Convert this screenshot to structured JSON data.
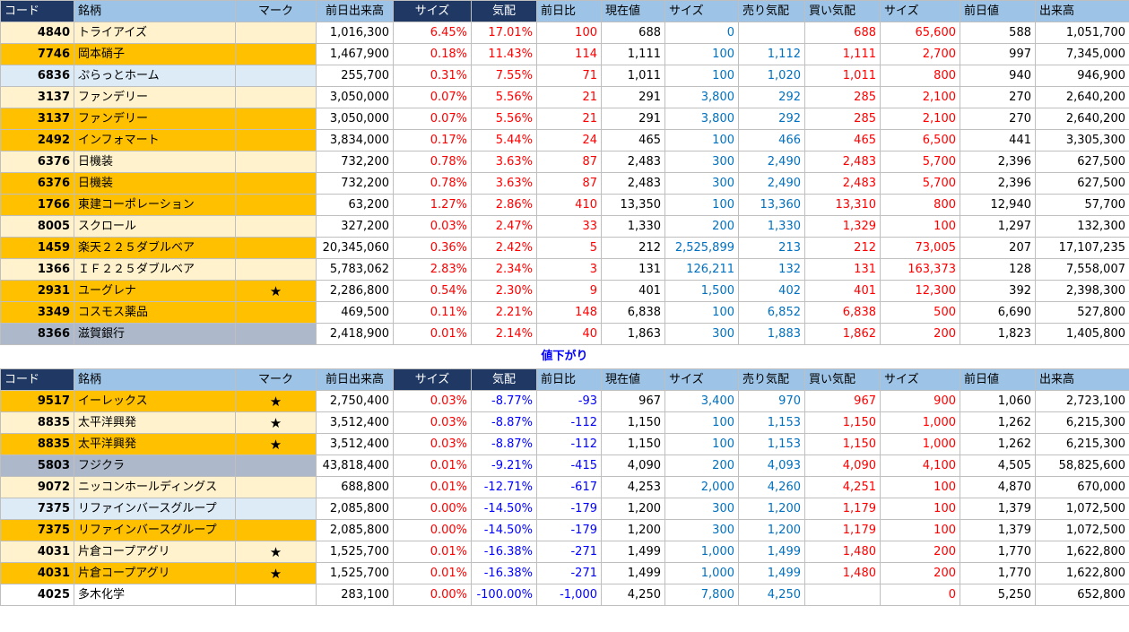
{
  "header": {
    "code": "コード",
    "name": "銘柄",
    "mark": "マーク",
    "prev_volume": "前日出来高",
    "size1": "サイズ",
    "kehai": "気配",
    "diff": "前日比",
    "price": "現在値",
    "size2": "サイズ",
    "ask": "売り気配",
    "bid": "買い気配",
    "size3": "サイズ",
    "prev_price": "前日値",
    "volume": "出来高"
  },
  "separator_label": "値下がり",
  "up_rows": [
    {
      "tone": "yellow",
      "code": "4840",
      "name": "トライアイズ",
      "mark": "",
      "prev_volume": "1,016,300",
      "size1": "6.45%",
      "kehai": "17.01%",
      "diff": "100",
      "price": "688",
      "size2": "0",
      "ask": "",
      "bid": "688",
      "size3": "65,600",
      "prev_price": "588",
      "volume": "1,051,700"
    },
    {
      "tone": "orange",
      "code": "7746",
      "name": "岡本硝子",
      "mark": "",
      "prev_volume": "1,467,900",
      "size1": "0.18%",
      "kehai": "11.43%",
      "diff": "114",
      "price": "1,111",
      "size2": "100",
      "ask": "1,112",
      "bid": "1,111",
      "size3": "2,700",
      "prev_price": "997",
      "volume": "7,345,000"
    },
    {
      "tone": "blue",
      "code": "6836",
      "name": "ぷらっとホーム",
      "mark": "",
      "prev_volume": "255,700",
      "size1": "0.31%",
      "kehai": "7.55%",
      "diff": "71",
      "price": "1,011",
      "size2": "100",
      "ask": "1,020",
      "bid": "1,011",
      "size3": "800",
      "prev_price": "940",
      "volume": "946,900"
    },
    {
      "tone": "yellow",
      "code": "3137",
      "name": "ファンデリー",
      "mark": "",
      "prev_volume": "3,050,000",
      "size1": "0.07%",
      "kehai": "5.56%",
      "diff": "21",
      "price": "291",
      "size2": "3,800",
      "ask": "292",
      "bid": "285",
      "size3": "2,100",
      "prev_price": "270",
      "volume": "2,640,200"
    },
    {
      "tone": "orange",
      "code": "3137",
      "name": "ファンデリー",
      "mark": "",
      "prev_volume": "3,050,000",
      "size1": "0.07%",
      "kehai": "5.56%",
      "diff": "21",
      "price": "291",
      "size2": "3,800",
      "ask": "292",
      "bid": "285",
      "size3": "2,100",
      "prev_price": "270",
      "volume": "2,640,200"
    },
    {
      "tone": "orange",
      "code": "2492",
      "name": "インフォマート",
      "mark": "",
      "prev_volume": "3,834,000",
      "size1": "0.17%",
      "kehai": "5.44%",
      "diff": "24",
      "price": "465",
      "size2": "100",
      "ask": "466",
      "bid": "465",
      "size3": "6,500",
      "prev_price": "441",
      "volume": "3,305,300"
    },
    {
      "tone": "yellow",
      "code": "6376",
      "name": "日機装",
      "mark": "",
      "prev_volume": "732,200",
      "size1": "0.78%",
      "kehai": "3.63%",
      "diff": "87",
      "price": "2,483",
      "size2": "300",
      "ask": "2,490",
      "bid": "2,483",
      "size3": "5,700",
      "prev_price": "2,396",
      "volume": "627,500"
    },
    {
      "tone": "orange",
      "code": "6376",
      "name": "日機装",
      "mark": "",
      "prev_volume": "732,200",
      "size1": "0.78%",
      "kehai": "3.63%",
      "diff": "87",
      "price": "2,483",
      "size2": "300",
      "ask": "2,490",
      "bid": "2,483",
      "size3": "5,700",
      "prev_price": "2,396",
      "volume": "627,500"
    },
    {
      "tone": "orange",
      "code": "1766",
      "name": "東建コーポレーション",
      "mark": "",
      "prev_volume": "63,200",
      "size1": "1.27%",
      "kehai": "2.86%",
      "diff": "410",
      "price": "13,350",
      "size2": "100",
      "ask": "13,360",
      "bid": "13,310",
      "size3": "800",
      "prev_price": "12,940",
      "volume": "57,700"
    },
    {
      "tone": "yellow",
      "code": "8005",
      "name": "スクロール",
      "mark": "",
      "prev_volume": "327,200",
      "size1": "0.03%",
      "kehai": "2.47%",
      "diff": "33",
      "price": "1,330",
      "size2": "200",
      "ask": "1,330",
      "bid": "1,329",
      "size3": "100",
      "prev_price": "1,297",
      "volume": "132,300"
    },
    {
      "tone": "orange",
      "code": "1459",
      "name": "楽天２２５ダブルベア",
      "mark": "",
      "prev_volume": "20,345,060",
      "size1": "0.36%",
      "kehai": "2.42%",
      "diff": "5",
      "price": "212",
      "size2": "2,525,899",
      "ask": "213",
      "bid": "212",
      "size3": "73,005",
      "prev_price": "207",
      "volume": "17,107,235"
    },
    {
      "tone": "yellow",
      "code": "1366",
      "name": "ＩＦ２２５ダブルベア",
      "mark": "",
      "prev_volume": "5,783,062",
      "size1": "2.83%",
      "kehai": "2.34%",
      "diff": "3",
      "price": "131",
      "size2": "126,211",
      "ask": "132",
      "bid": "131",
      "size3": "163,373",
      "prev_price": "128",
      "volume": "7,558,007"
    },
    {
      "tone": "orange",
      "code": "2931",
      "name": "ユーグレナ",
      "mark": "★",
      "prev_volume": "2,286,800",
      "size1": "0.54%",
      "kehai": "2.30%",
      "diff": "9",
      "price": "401",
      "size2": "1,500",
      "ask": "402",
      "bid": "401",
      "size3": "12,300",
      "prev_price": "392",
      "volume": "2,398,300"
    },
    {
      "tone": "orange",
      "code": "3349",
      "name": "コスモス薬品",
      "mark": "",
      "prev_volume": "469,500",
      "size1": "0.11%",
      "kehai": "2.21%",
      "diff": "148",
      "price": "6,838",
      "size2": "100",
      "ask": "6,852",
      "bid": "6,838",
      "size3": "500",
      "prev_price": "6,690",
      "volume": "527,800"
    },
    {
      "tone": "gray",
      "code": "8366",
      "name": "滋賀銀行",
      "mark": "",
      "prev_volume": "2,418,900",
      "size1": "0.01%",
      "kehai": "2.14%",
      "diff": "40",
      "price": "1,863",
      "size2": "300",
      "ask": "1,883",
      "bid": "1,862",
      "size3": "200",
      "prev_price": "1,823",
      "volume": "1,405,800"
    }
  ],
  "down_rows": [
    {
      "tone": "orange",
      "code": "9517",
      "name": "イーレックス",
      "mark": "★",
      "prev_volume": "2,750,400",
      "size1": "0.03%",
      "kehai": "-8.77%",
      "diff": "-93",
      "price": "967",
      "size2": "3,400",
      "ask": "970",
      "bid": "967",
      "size3": "900",
      "prev_price": "1,060",
      "volume": "2,723,100"
    },
    {
      "tone": "yellow",
      "code": "8835",
      "name": "太平洋興発",
      "mark": "★",
      "prev_volume": "3,512,400",
      "size1": "0.03%",
      "kehai": "-8.87%",
      "diff": "-112",
      "price": "1,150",
      "size2": "100",
      "ask": "1,153",
      "bid": "1,150",
      "size3": "1,000",
      "prev_price": "1,262",
      "volume": "6,215,300"
    },
    {
      "tone": "orange",
      "code": "8835",
      "name": "太平洋興発",
      "mark": "★",
      "prev_volume": "3,512,400",
      "size1": "0.03%",
      "kehai": "-8.87%",
      "diff": "-112",
      "price": "1,150",
      "size2": "100",
      "ask": "1,153",
      "bid": "1,150",
      "size3": "1,000",
      "prev_price": "1,262",
      "volume": "6,215,300"
    },
    {
      "tone": "gray",
      "code": "5803",
      "name": "フジクラ",
      "mark": "",
      "prev_volume": "43,818,400",
      "size1": "0.01%",
      "kehai": "-9.21%",
      "diff": "-415",
      "price": "4,090",
      "size2": "200",
      "ask": "4,093",
      "bid": "4,090",
      "size3": "4,100",
      "prev_price": "4,505",
      "volume": "58,825,600"
    },
    {
      "tone": "yellow",
      "code": "9072",
      "name": "ニッコンホールディングス",
      "mark": "",
      "prev_volume": "688,800",
      "size1": "0.01%",
      "kehai": "-12.71%",
      "diff": "-617",
      "price": "4,253",
      "size2": "2,000",
      "ask": "4,260",
      "bid": "4,251",
      "size3": "100",
      "prev_price": "4,870",
      "volume": "670,000"
    },
    {
      "tone": "blue",
      "code": "7375",
      "name": "リファインバースグループ",
      "mark": "",
      "prev_volume": "2,085,800",
      "size1": "0.00%",
      "kehai": "-14.50%",
      "diff": "-179",
      "price": "1,200",
      "size2": "300",
      "ask": "1,200",
      "bid": "1,179",
      "size3": "100",
      "prev_price": "1,379",
      "volume": "1,072,500"
    },
    {
      "tone": "orange",
      "code": "7375",
      "name": "リファインバースグループ",
      "mark": "",
      "prev_volume": "2,085,800",
      "size1": "0.00%",
      "kehai": "-14.50%",
      "diff": "-179",
      "price": "1,200",
      "size2": "300",
      "ask": "1,200",
      "bid": "1,179",
      "size3": "100",
      "prev_price": "1,379",
      "volume": "1,072,500"
    },
    {
      "tone": "yellow",
      "code": "4031",
      "name": "片倉コープアグリ",
      "mark": "★",
      "prev_volume": "1,525,700",
      "size1": "0.01%",
      "kehai": "-16.38%",
      "diff": "-271",
      "price": "1,499",
      "size2": "1,000",
      "ask": "1,499",
      "bid": "1,480",
      "size3": "200",
      "prev_price": "1,770",
      "volume": "1,622,800"
    },
    {
      "tone": "orange",
      "code": "4031",
      "name": "片倉コープアグリ",
      "mark": "★",
      "prev_volume": "1,525,700",
      "size1": "0.01%",
      "kehai": "-16.38%",
      "diff": "-271",
      "price": "1,499",
      "size2": "1,000",
      "ask": "1,499",
      "bid": "1,480",
      "size3": "200",
      "prev_price": "1,770",
      "volume": "1,622,800"
    },
    {
      "tone": "white",
      "code": "4025",
      "name": "多木化学",
      "mark": "",
      "prev_volume": "283,100",
      "size1": "0.00%",
      "kehai": "-100.00%",
      "diff": "-1,000",
      "price": "4,250",
      "size2": "7,800",
      "ask": "4,250",
      "bid": "",
      "size3": "0",
      "prev_price": "5,250",
      "volume": "652,800"
    }
  ]
}
